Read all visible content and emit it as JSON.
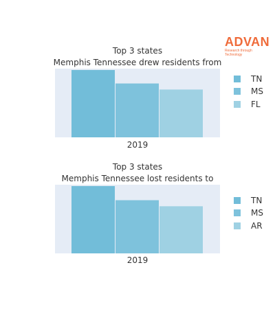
{
  "brand": {
    "name": "ADVAN",
    "tagline": "Research through Technology",
    "color": "#ef6b3a"
  },
  "colors": {
    "plot_background": "#e5ecf6",
    "bar_1": "#72bdd9",
    "bar_2": "#7ec2dc",
    "bar_3": "#9fd1e3"
  },
  "chart_data": [
    {
      "type": "bar",
      "title": "Top 3 states",
      "subtitle": "Memphis Tennessee drew residents from",
      "categories": [
        "2019"
      ],
      "series": [
        {
          "name": "TN",
          "values": [
            100
          ]
        },
        {
          "name": "MS",
          "values": [
            80
          ]
        },
        {
          "name": "FL",
          "values": [
            71
          ]
        }
      ],
      "ylim": [
        0,
        102
      ],
      "grid": false,
      "legend": "right"
    },
    {
      "type": "bar",
      "title": "Top 3 states",
      "subtitle": "Memphis Tennessee lost residents to",
      "categories": [
        "2019"
      ],
      "series": [
        {
          "name": "TN",
          "values": [
            100
          ]
        },
        {
          "name": "MS",
          "values": [
            79
          ]
        },
        {
          "name": "AR",
          "values": [
            70
          ]
        }
      ],
      "ylim": [
        0,
        102
      ],
      "grid": false,
      "legend": "right"
    }
  ]
}
